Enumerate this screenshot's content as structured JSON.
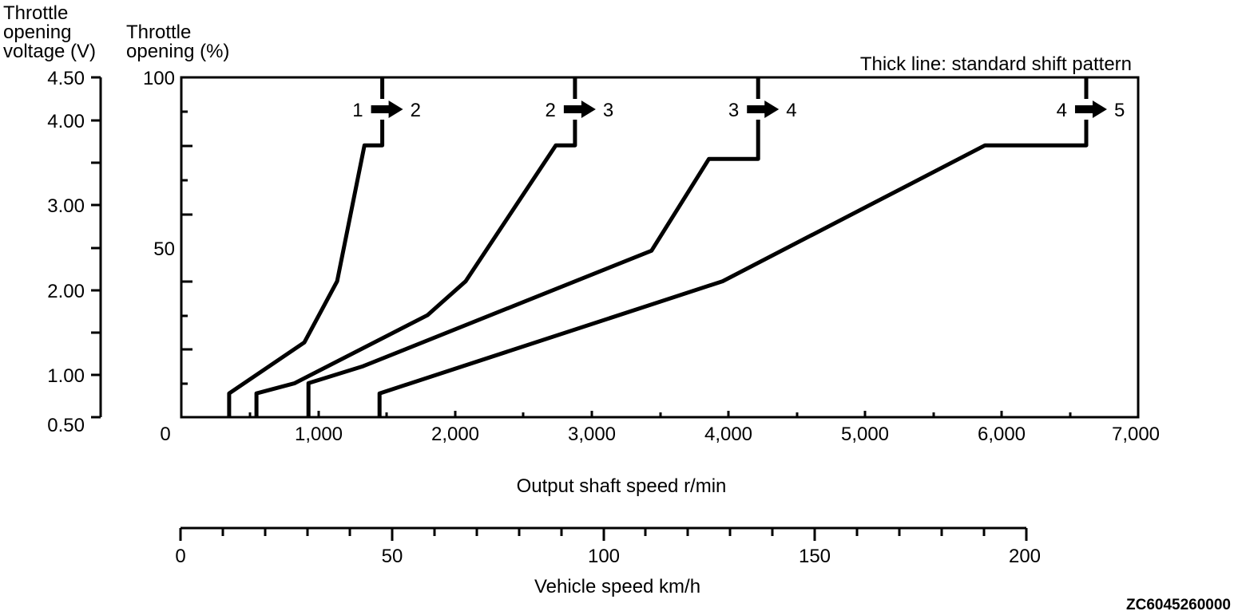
{
  "chart_data": {
    "type": "line",
    "title": "",
    "note": "Thick line: standard shift pattern",
    "image_code": "ZC6045260000",
    "left_axis_voltage": {
      "label_lines": [
        "Throttle",
        "opening",
        "voltage (V)"
      ],
      "ticks": [
        "4.50",
        "4.00",
        "3.00",
        "2.00",
        "1.00",
        "0.50"
      ],
      "range": [
        0.5,
        4.5
      ]
    },
    "left_axis_opening": {
      "label_lines": [
        "Throttle",
        "opening (%)"
      ],
      "ticks": [
        "100",
        "50"
      ],
      "range": [
        0,
        100
      ]
    },
    "x_axis_rpm": {
      "label": "Output shaft speed r/min",
      "ticks": [
        "0",
        "1,000",
        "2,000",
        "3,000",
        "4,000",
        "5,000",
        "6,000",
        "7,000"
      ],
      "range": [
        0,
        7000
      ]
    },
    "x_axis_speed": {
      "label": "Vehicle speed km/h",
      "ticks": [
        "0",
        "50",
        "100",
        "150",
        "200"
      ],
      "range": [
        0,
        200
      ]
    },
    "series": [
      {
        "from": "1",
        "to": "2",
        "points": [
          [
            350,
            0
          ],
          [
            350,
            7
          ],
          [
            900,
            22
          ],
          [
            1140,
            40
          ],
          [
            1340,
            80
          ],
          [
            1470,
            80
          ],
          [
            1470,
            100
          ]
        ]
      },
      {
        "from": "2",
        "to": "3",
        "points": [
          [
            550,
            0
          ],
          [
            550,
            7
          ],
          [
            830,
            10
          ],
          [
            1800,
            30
          ],
          [
            2080,
            40
          ],
          [
            2740,
            80
          ],
          [
            2880,
            80
          ],
          [
            2880,
            100
          ]
        ]
      },
      {
        "from": "3",
        "to": "4",
        "points": [
          [
            930,
            0
          ],
          [
            930,
            10
          ],
          [
            1330,
            15
          ],
          [
            3440,
            49
          ],
          [
            3860,
            76
          ],
          [
            4220,
            76
          ],
          [
            4220,
            100
          ]
        ]
      },
      {
        "from": "4",
        "to": "5",
        "points": [
          [
            1450,
            0
          ],
          [
            1450,
            7
          ],
          [
            3960,
            40
          ],
          [
            5880,
            80
          ],
          [
            6620,
            80
          ],
          [
            6620,
            100
          ]
        ]
      }
    ]
  }
}
